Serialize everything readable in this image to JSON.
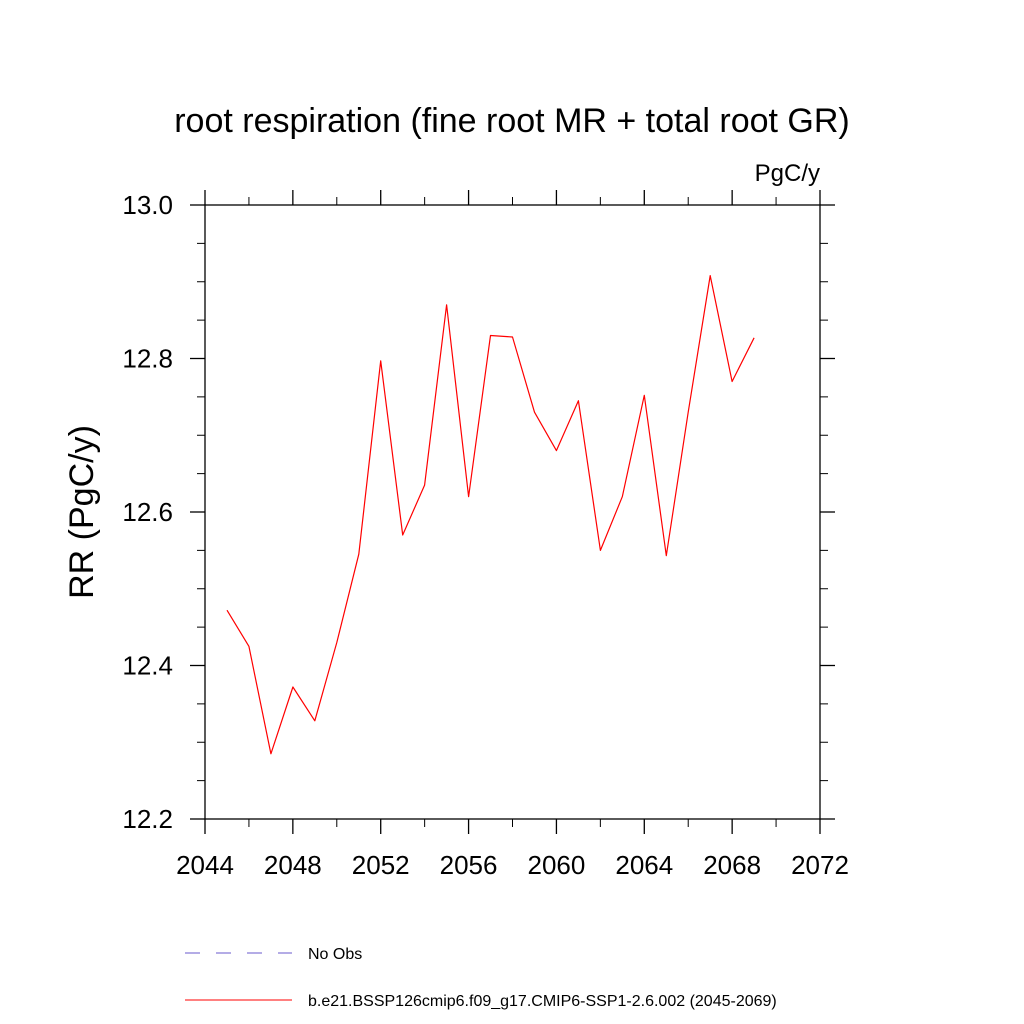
{
  "chart_data": {
    "type": "line",
    "title": "root respiration (fine root MR + total root GR)",
    "units": "PgC/y",
    "ylabel": "RR  (PgC/y)",
    "xlabel": "",
    "xlim": [
      2044,
      2072
    ],
    "ylim": [
      12.2,
      13.0
    ],
    "x_ticks": [
      2044,
      2048,
      2052,
      2056,
      2060,
      2064,
      2068,
      2072
    ],
    "x_minor_ticks": [
      2046,
      2050,
      2054,
      2058,
      2062,
      2066,
      2070
    ],
    "y_ticks": [
      12.2,
      12.4,
      12.6,
      12.8,
      13.0
    ],
    "y_tick_labels": [
      "12.2",
      "12.4",
      "12.6",
      "12.8",
      "13.0"
    ],
    "y_minor_ticks": [
      12.25,
      12.3,
      12.35,
      12.45,
      12.5,
      12.55,
      12.65,
      12.7,
      12.75,
      12.85,
      12.9,
      12.95
    ],
    "grid": false,
    "legend_position": "bottom",
    "series": [
      {
        "name": "No Obs",
        "color": "#6a5acd",
        "style": "dashed",
        "x": [],
        "values": []
      },
      {
        "name": "b.e21.BSSP126cmip6.f09_g17.CMIP6-SSP1-2.6.002 (2045-2069)",
        "color": "#ff0000",
        "style": "solid",
        "x": [
          2045,
          2046,
          2047,
          2048,
          2049,
          2050,
          2051,
          2052,
          2053,
          2054,
          2055,
          2056,
          2057,
          2058,
          2059,
          2060,
          2061,
          2062,
          2063,
          2064,
          2065,
          2066,
          2067,
          2068,
          2069
        ],
        "values": [
          12.472,
          12.425,
          12.285,
          12.372,
          12.328,
          12.43,
          12.545,
          12.797,
          12.57,
          12.635,
          12.87,
          12.62,
          12.83,
          12.828,
          12.73,
          12.68,
          12.745,
          12.55,
          12.62,
          12.752,
          12.543,
          12.73,
          12.908,
          12.77,
          12.827
        ]
      }
    ]
  }
}
